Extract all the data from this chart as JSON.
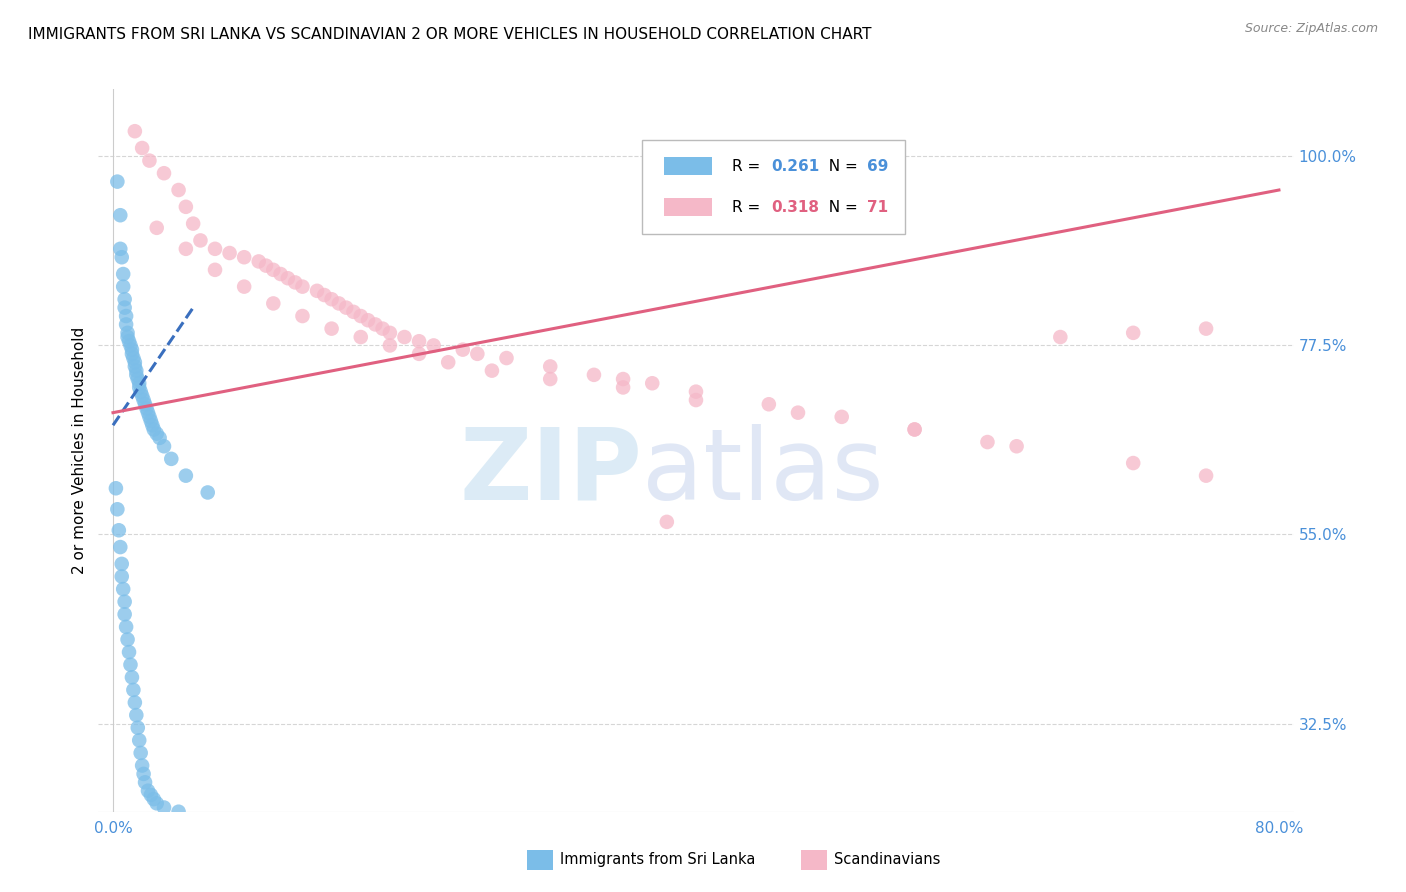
{
  "title": "IMMIGRANTS FROM SRI LANKA VS SCANDINAVIAN 2 OR MORE VEHICLES IN HOUSEHOLD CORRELATION CHART",
  "source": "Source: ZipAtlas.com",
  "ylabel": "2 or more Vehicles in Household",
  "yticks": [
    32.5,
    55.0,
    77.5,
    100.0
  ],
  "ytick_labels": [
    "32.5%",
    "55.0%",
    "77.5%",
    "100.0%"
  ],
  "xrange": [
    0.0,
    80.0
  ],
  "yrange": [
    22.0,
    108.0
  ],
  "color_blue": "#7bbde8",
  "color_pink": "#f5b8c8",
  "color_blue_text": "#4a90d9",
  "color_pink_text": "#e06080",
  "color_line_blue": "#3a6fbe",
  "color_line_pink": "#e06080",
  "sri_lanka_x": [
    0.3,
    0.5,
    0.5,
    0.6,
    0.7,
    0.7,
    0.8,
    0.8,
    0.9,
    0.9,
    1.0,
    1.0,
    1.1,
    1.2,
    1.3,
    1.3,
    1.4,
    1.5,
    1.5,
    1.6,
    1.6,
    1.7,
    1.8,
    1.8,
    1.9,
    2.0,
    2.1,
    2.2,
    2.3,
    2.4,
    2.5,
    2.6,
    2.7,
    2.8,
    3.0,
    3.2,
    3.5,
    4.0,
    5.0,
    6.5,
    0.2,
    0.3,
    0.4,
    0.5,
    0.6,
    0.6,
    0.7,
    0.8,
    0.8,
    0.9,
    1.0,
    1.1,
    1.2,
    1.3,
    1.4,
    1.5,
    1.6,
    1.7,
    1.8,
    1.9,
    2.0,
    2.1,
    2.2,
    2.4,
    2.6,
    2.8,
    3.0,
    3.5,
    4.5
  ],
  "sri_lanka_y": [
    97.0,
    93.0,
    89.0,
    88.0,
    86.0,
    84.5,
    83.0,
    82.0,
    81.0,
    80.0,
    79.0,
    78.5,
    78.0,
    77.5,
    77.0,
    76.5,
    76.0,
    75.5,
    75.0,
    74.5,
    74.0,
    73.5,
    73.0,
    72.5,
    72.0,
    71.5,
    71.0,
    70.5,
    70.0,
    69.5,
    69.0,
    68.5,
    68.0,
    67.5,
    67.0,
    66.5,
    65.5,
    64.0,
    62.0,
    60.0,
    60.5,
    58.0,
    55.5,
    53.5,
    51.5,
    50.0,
    48.5,
    47.0,
    45.5,
    44.0,
    42.5,
    41.0,
    39.5,
    38.0,
    36.5,
    35.0,
    33.5,
    32.0,
    30.5,
    29.0,
    27.5,
    26.5,
    25.5,
    24.5,
    24.0,
    23.5,
    23.0,
    22.5,
    22.0
  ],
  "scandinavian_x": [
    1.5,
    2.0,
    2.5,
    3.5,
    4.5,
    5.0,
    5.5,
    6.0,
    7.0,
    8.0,
    9.0,
    10.0,
    10.5,
    11.0,
    11.5,
    12.0,
    12.5,
    13.0,
    14.0,
    14.5,
    15.0,
    15.5,
    16.0,
    16.5,
    17.0,
    17.5,
    18.0,
    18.5,
    19.0,
    20.0,
    21.0,
    22.0,
    24.0,
    25.0,
    27.0,
    30.0,
    33.0,
    35.0,
    37.0,
    40.0,
    45.0,
    50.0,
    55.0,
    60.0,
    65.0,
    70.0,
    75.0,
    3.0,
    5.0,
    7.0,
    9.0,
    11.0,
    13.0,
    15.0,
    17.0,
    19.0,
    21.0,
    23.0,
    26.0,
    30.0,
    35.0,
    40.0,
    47.0,
    55.0,
    62.0,
    70.0,
    75.0,
    38.0
  ],
  "scandinavian_y": [
    103.0,
    101.0,
    99.5,
    98.0,
    96.0,
    94.0,
    92.0,
    90.0,
    89.0,
    88.5,
    88.0,
    87.5,
    87.0,
    86.5,
    86.0,
    85.5,
    85.0,
    84.5,
    84.0,
    83.5,
    83.0,
    82.5,
    82.0,
    81.5,
    81.0,
    80.5,
    80.0,
    79.5,
    79.0,
    78.5,
    78.0,
    77.5,
    77.0,
    76.5,
    76.0,
    75.0,
    74.0,
    73.5,
    73.0,
    72.0,
    70.5,
    69.0,
    67.5,
    66.0,
    78.5,
    79.0,
    79.5,
    91.5,
    89.0,
    86.5,
    84.5,
    82.5,
    81.0,
    79.5,
    78.5,
    77.5,
    76.5,
    75.5,
    74.5,
    73.5,
    72.5,
    71.0,
    69.5,
    67.5,
    65.5,
    63.5,
    62.0,
    56.5
  ],
  "sri_line_x0": 0.0,
  "sri_line_y0": 68.0,
  "sri_line_x1": 5.5,
  "sri_line_y1": 82.0,
  "sc_line_x0": 0.0,
  "sc_line_y0": 69.5,
  "sc_line_x1": 80.0,
  "sc_line_y1": 96.0
}
